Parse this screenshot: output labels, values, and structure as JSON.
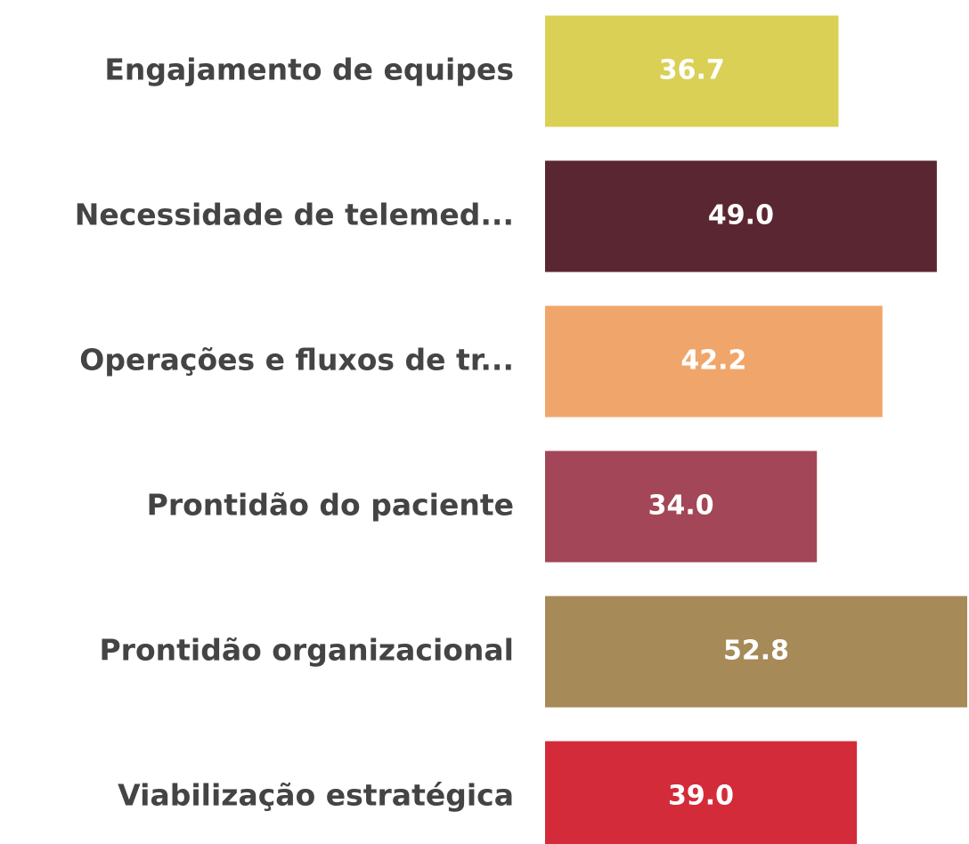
{
  "chart_data": {
    "type": "bar",
    "orientation": "horizontal",
    "categories": [
      "Engajamento de equipes",
      "Necessidade de telemed...",
      "Operações e fluxos de tr...",
      "Prontidão do paciente",
      "Prontidão organizacional",
      "Viabilização estratégica"
    ],
    "values": [
      36.7,
      49.0,
      42.2,
      34.0,
      52.8,
      39.0
    ],
    "value_labels": [
      "36.7",
      "49.0",
      "42.2",
      "34.0",
      "52.8",
      "39.0"
    ],
    "colors": [
      "#d9d055",
      "#5a2632",
      "#f0a66b",
      "#a34657",
      "#a68a57",
      "#d42b3a"
    ]
  }
}
